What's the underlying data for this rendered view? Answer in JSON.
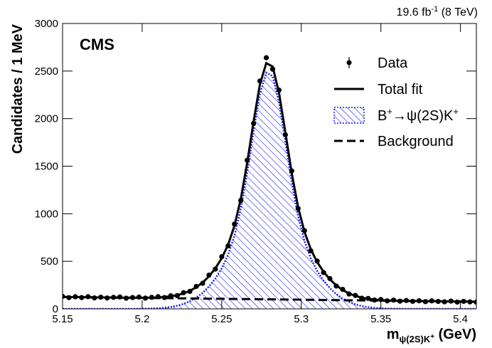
{
  "chart_data": {
    "type": "scatter",
    "experiment": "CMS",
    "lumi": {
      "main": "19.6 fb",
      "sup": "-1",
      "rest": " (8 TeV)"
    },
    "y_label": "Candidates / 1 MeV",
    "x_label": {
      "main": "m",
      "sub": "ψ(2S)K",
      "subsup": "+",
      "unit": " (GeV)"
    },
    "xlim": [
      5.15,
      5.41
    ],
    "ylim": [
      0,
      3000
    ],
    "xticks": [
      5.15,
      5.2,
      5.25,
      5.3,
      5.35,
      5.4
    ],
    "yticks": [
      0,
      500,
      1000,
      1500,
      2000,
      2500,
      3000
    ],
    "x": [
      5.15,
      5.154,
      5.158,
      5.162,
      5.166,
      5.17,
      5.174,
      5.178,
      5.182,
      5.186,
      5.19,
      5.194,
      5.198,
      5.202,
      5.206,
      5.21,
      5.214,
      5.218,
      5.222,
      5.226,
      5.23,
      5.234,
      5.238,
      5.242,
      5.246,
      5.25,
      5.254,
      5.258,
      5.262,
      5.266,
      5.27,
      5.274,
      5.278,
      5.282,
      5.286,
      5.29,
      5.294,
      5.298,
      5.302,
      5.306,
      5.31,
      5.314,
      5.318,
      5.322,
      5.326,
      5.33,
      5.334,
      5.338,
      5.342,
      5.346,
      5.35,
      5.354,
      5.358,
      5.362,
      5.366,
      5.37,
      5.374,
      5.378,
      5.382,
      5.386,
      5.39,
      5.394,
      5.398,
      5.402,
      5.406,
      5.41
    ],
    "series": [
      {
        "name": "Data",
        "style": "points",
        "color": "#000000",
        "values": [
          131,
          118,
          127,
          119,
          128,
          115,
          123,
          114,
          121,
          125,
          112,
          119,
          124,
          113,
          121,
          128,
          119,
          138,
          139,
          170,
          184,
          236,
          269,
          355,
          418,
          548,
          662,
          891,
          1140,
          1562,
          1950,
          2395,
          2640,
          2520,
          2300,
          1830,
          1450,
          1055,
          822,
          610,
          502,
          382,
          318,
          240,
          205,
          156,
          141,
          112,
          110,
          93,
          98,
          84,
          92,
          81,
          88,
          79,
          85,
          76,
          84,
          78,
          74,
          82,
          71,
          79,
          73,
          70
        ]
      },
      {
        "name": "Total fit",
        "style": "line",
        "color": "#000000",
        "values": [
          125,
          124,
          123,
          123,
          122,
          121,
          120,
          120,
          119,
          118,
          117,
          117,
          117,
          117,
          118,
          120,
          125,
          132,
          144,
          162,
          190,
          227,
          277,
          342,
          426,
          532,
          674,
          874,
          1157,
          1535,
          1968,
          2361,
          2583,
          2547,
          2271,
          1855,
          1427,
          1070,
          809,
          625,
          491,
          390,
          310,
          247,
          198,
          162,
          137,
          118,
          106,
          97,
          93,
          89,
          87,
          85,
          83,
          83,
          82,
          81,
          80,
          80,
          79,
          78,
          77,
          77,
          76,
          75
        ]
      },
      {
        "name": {
          "main": "B",
          "sup1": "+",
          "mid": "→ψ(2S)K",
          "sup2": "+"
        },
        "style": "hatched",
        "color": "#1a1aff",
        "values": [
          0,
          0,
          0,
          0,
          0,
          0,
          0,
          0,
          0,
          0,
          0,
          0,
          1,
          2,
          4,
          7,
          12,
          20,
          33,
          52,
          80,
          118,
          169,
          235,
          319,
          426,
          569,
          770,
          1054,
          1432,
          1866,
          2260,
          2483,
          2447,
          2172,
          1757,
          1330,
          973,
          713,
          530,
          397,
          297,
          217,
          155,
          107,
          72,
          47,
          29,
          18,
          10,
          6,
          3,
          2,
          1,
          0,
          0,
          0,
          0,
          0,
          0,
          0,
          0,
          0,
          0,
          0,
          0
        ]
      },
      {
        "name": "Background",
        "style": "dashed",
        "color": "#000000",
        "values": [
          125,
          124,
          123,
          123,
          122,
          121,
          120,
          120,
          119,
          118,
          117,
          117,
          116,
          115,
          114,
          113,
          113,
          112,
          111,
          110,
          110,
          109,
          108,
          107,
          107,
          106,
          105,
          104,
          103,
          103,
          102,
          101,
          100,
          100,
          99,
          98,
          97,
          97,
          96,
          95,
          94,
          93,
          93,
          92,
          91,
          90,
          90,
          89,
          88,
          87,
          87,
          86,
          85,
          84,
          83,
          83,
          82,
          81,
          80,
          80,
          79,
          78,
          77,
          77,
          76,
          75
        ]
      }
    ]
  }
}
